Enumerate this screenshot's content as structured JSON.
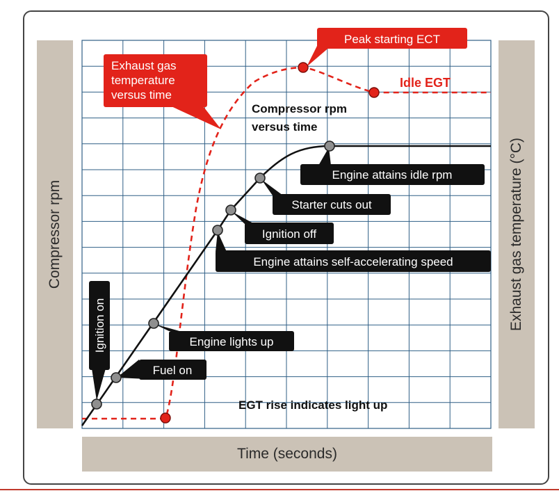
{
  "axes": {
    "y_left_label": "Compressor rpm",
    "y_right_label": "Exhaust gas temperature (°C)",
    "x_label": "Time (seconds)"
  },
  "curves": {
    "egt_label_lines": [
      "Exhaust gas",
      "temperature",
      "versus time"
    ],
    "rpm_label_lines": [
      "Compressor rpm",
      "versus time"
    ]
  },
  "egt_annotations": {
    "peak": "Peak starting ECT",
    "idle": "Idle EGT",
    "rise": "EGT rise indicates light up"
  },
  "events": {
    "ignition_on": "Ignition on",
    "fuel_on": "Fuel on",
    "lights_up": "Engine lights up",
    "self_accel": "Engine attains self-accelerating speed",
    "ignition_off": "Ignition off",
    "starter_cuts": "Starter cuts out",
    "idle_rpm": "Engine attains idle rpm"
  },
  "colors": {
    "egt": "#e2231a",
    "rpm": "#111111",
    "grid": "#2f5f86",
    "label_bg": "#111111",
    "axis_bar": "#cbc2b6"
  }
}
